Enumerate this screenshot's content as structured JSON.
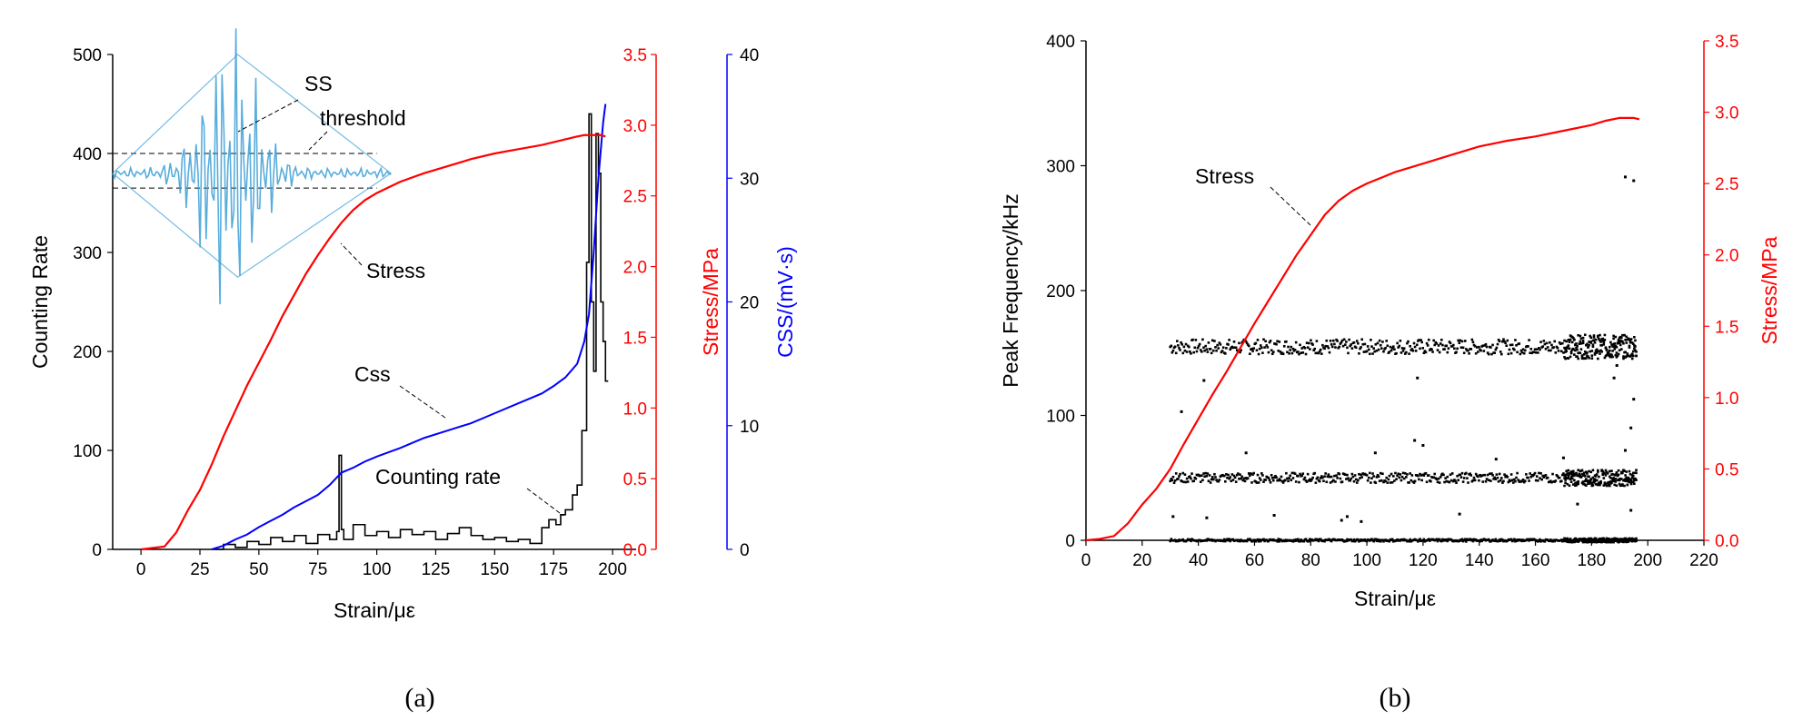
{
  "chart_data": [
    {
      "type": "line",
      "panel_label": "(a)",
      "xlabel": "Strain/με",
      "ylabel": "Counting Rate",
      "y2label": "Stress/MPa",
      "y3label": "CSS/(mV·s)",
      "xlim": [
        -12,
        210
      ],
      "ylim": [
        0,
        500
      ],
      "y2lim": [
        0,
        3.5
      ],
      "y3lim": [
        0,
        40
      ],
      "xticks": [
        0,
        25,
        50,
        75,
        100,
        125,
        150,
        175,
        200
      ],
      "yticks": [
        0,
        100,
        200,
        300,
        400,
        500
      ],
      "y2ticks": [
        0.0,
        0.5,
        1.0,
        1.5,
        2.0,
        2.5,
        3.0,
        3.5
      ],
      "y3ticks": [
        0,
        10,
        20,
        30,
        40
      ],
      "colors": {
        "stress": "#ff0000",
        "css": "#0000ff",
        "counting": "#000000",
        "inset": "#3b9fd6"
      },
      "annotations": [
        "SS",
        "threshold",
        "Stress",
        "Css",
        "Counting rate"
      ],
      "series": [
        {
          "name": "Stress",
          "axis": "y2",
          "x": [
            0,
            10,
            15,
            20,
            25,
            30,
            35,
            40,
            45,
            50,
            55,
            60,
            65,
            70,
            75,
            80,
            85,
            90,
            95,
            100,
            110,
            120,
            130,
            140,
            150,
            160,
            170,
            180,
            185,
            188,
            192,
            195,
            197
          ],
          "y": [
            0,
            0.02,
            0.12,
            0.28,
            0.42,
            0.6,
            0.8,
            0.98,
            1.16,
            1.32,
            1.48,
            1.65,
            1.8,
            1.95,
            2.08,
            2.2,
            2.31,
            2.4,
            2.47,
            2.52,
            2.6,
            2.66,
            2.71,
            2.76,
            2.8,
            2.83,
            2.86,
            2.9,
            2.92,
            2.93,
            2.93,
            2.93,
            2.92
          ]
        },
        {
          "name": "Css",
          "axis": "y3",
          "x": [
            30,
            35,
            40,
            45,
            50,
            55,
            60,
            65,
            70,
            75,
            80,
            85,
            90,
            95,
            100,
            110,
            120,
            130,
            140,
            150,
            160,
            170,
            175,
            180,
            185,
            188,
            190,
            192,
            194,
            196,
            197
          ],
          "y": [
            0,
            0.3,
            0.8,
            1.2,
            1.8,
            2.3,
            2.8,
            3.4,
            3.9,
            4.4,
            5.2,
            6.2,
            6.6,
            7.1,
            7.5,
            8.2,
            9.0,
            9.6,
            10.2,
            11.0,
            11.8,
            12.6,
            13.2,
            13.9,
            15.0,
            16.8,
            19.0,
            24.0,
            30.0,
            34.5,
            36.0
          ]
        },
        {
          "name": "Counting rate",
          "axis": "y",
          "x": [
            30,
            35,
            40,
            45,
            50,
            55,
            60,
            65,
            70,
            75,
            80,
            83,
            84,
            85,
            86,
            90,
            95,
            100,
            105,
            110,
            115,
            120,
            125,
            130,
            135,
            140,
            145,
            150,
            155,
            160,
            165,
            170,
            173,
            176,
            178,
            180,
            183,
            185,
            187,
            189,
            190,
            191,
            192,
            193,
            194,
            195,
            196,
            197
          ],
          "y": [
            0,
            5,
            2,
            8,
            5,
            12,
            8,
            14,
            6,
            15,
            10,
            18,
            95,
            20,
            10,
            25,
            14,
            18,
            12,
            20,
            15,
            18,
            10,
            16,
            22,
            14,
            10,
            12,
            8,
            10,
            6,
            22,
            30,
            25,
            35,
            40,
            55,
            65,
            120,
            290,
            440,
            250,
            180,
            420,
            380,
            250,
            210,
            170
          ]
        }
      ]
    },
    {
      "type": "scatter",
      "panel_label": "(b)",
      "xlabel": "Strain/με",
      "ylabel": "Peak Frequency/kHz",
      "y2label": "Stress/MPa",
      "xlim": [
        0,
        220
      ],
      "ylim": [
        0,
        400
      ],
      "y2lim": [
        0,
        3.5
      ],
      "xticks": [
        0,
        20,
        40,
        60,
        80,
        100,
        120,
        140,
        160,
        180,
        200,
        220
      ],
      "yticks": [
        0,
        100,
        200,
        300,
        400
      ],
      "y2ticks": [
        0.0,
        0.5,
        1.0,
        1.5,
        2.0,
        2.5,
        3.0,
        3.5
      ],
      "colors": {
        "stress": "#ff0000",
        "points": "#000000"
      },
      "annotations": [
        "Stress"
      ],
      "series": [
        {
          "name": "Stress",
          "axis": "y2",
          "x": [
            0,
            5,
            10,
            15,
            20,
            25,
            30,
            35,
            40,
            45,
            50,
            55,
            60,
            65,
            70,
            75,
            80,
            85,
            90,
            95,
            100,
            110,
            120,
            130,
            140,
            150,
            160,
            170,
            180,
            185,
            190,
            195,
            197
          ],
          "y": [
            0,
            0.01,
            0.03,
            0.12,
            0.25,
            0.36,
            0.5,
            0.68,
            0.85,
            1.02,
            1.18,
            1.35,
            1.52,
            1.68,
            1.84,
            2.0,
            2.14,
            2.28,
            2.38,
            2.45,
            2.5,
            2.58,
            2.64,
            2.7,
            2.76,
            2.8,
            2.83,
            2.87,
            2.91,
            2.94,
            2.96,
            2.96,
            2.95
          ]
        },
        {
          "name": "Peak frequency points",
          "axis": "y",
          "bands": [
            {
              "x_range": [
                30,
                196
              ],
              "y_center": 155,
              "spread": 6
            },
            {
              "x_range": [
                30,
                196
              ],
              "y_center": 50,
              "spread": 4
            },
            {
              "x_range": [
                30,
                196
              ],
              "y_center": 0,
              "spread": 1
            }
          ],
          "outliers": [
            [
              34,
              103
            ],
            [
              42,
              128
            ],
            [
              43,
              18
            ],
            [
              31,
              19
            ],
            [
              57,
              70
            ],
            [
              67,
              20
            ],
            [
              91,
              16
            ],
            [
              93,
              19
            ],
            [
              98,
              15
            ],
            [
              103,
              70
            ],
            [
              117,
              80
            ],
            [
              120,
              76
            ],
            [
              118,
              130
            ],
            [
              133,
              21
            ],
            [
              146,
              65
            ],
            [
              170,
              66
            ],
            [
              175,
              29
            ],
            [
              188,
              130
            ],
            [
              189,
              140
            ],
            [
              192,
              291
            ],
            [
              195,
              288
            ],
            [
              192,
              72
            ],
            [
              194,
              90
            ],
            [
              195,
              113
            ],
            [
              194,
              24
            ]
          ]
        }
      ]
    }
  ]
}
